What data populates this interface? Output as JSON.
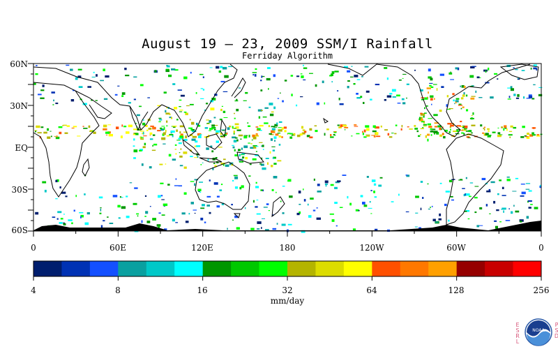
{
  "title": "August 19 – 23, 2009 SSM/I Rainfall",
  "subtitle": "Ferriday Algorithm",
  "map": {
    "lat_labels": [
      "60N",
      "30N",
      "EQ",
      "30S",
      "60S"
    ],
    "lon_labels": [
      "0",
      "60E",
      "120E",
      "180",
      "120W",
      "60W",
      "0"
    ]
  },
  "colorbar": {
    "units": "mm/day",
    "tick_labels": [
      "4",
      "8",
      "16",
      "32",
      "64",
      "128",
      "256"
    ],
    "colors": [
      "#001e6e",
      "#0032b4",
      "#1450ff",
      "#0aa0a0",
      "#00c8c8",
      "#00ffff",
      "#009600",
      "#00c800",
      "#00ff00",
      "#b4b400",
      "#dcdc00",
      "#ffff00",
      "#ff5000",
      "#ff7800",
      "#ffa000",
      "#960000",
      "#c80000",
      "#ff0000"
    ]
  },
  "logo": {
    "left_text": "ESRL",
    "right_text": "PSD",
    "center_text": "NOAA"
  },
  "colors": {
    "land_outline": "#000000",
    "background": "#ffffff"
  }
}
